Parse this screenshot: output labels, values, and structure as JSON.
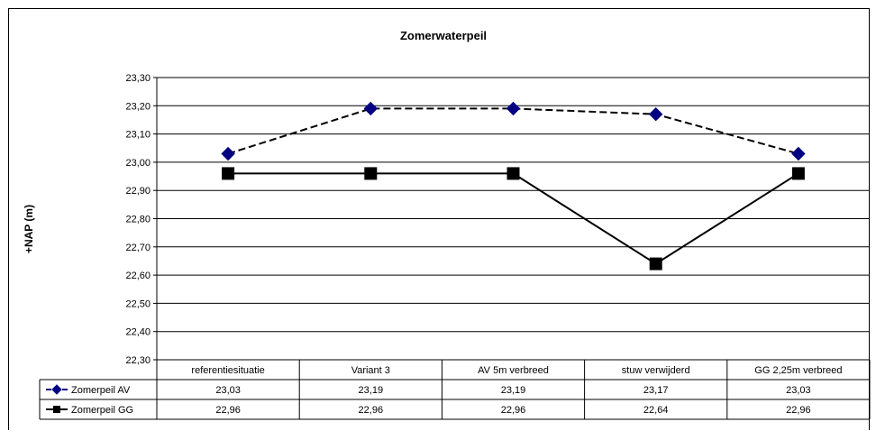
{
  "chart_data": {
    "type": "line",
    "title": "Zomerwaterpeil",
    "ylabel": "+NAP (m)",
    "xlabel": "",
    "categories": [
      "referentiesituatie",
      "Variant 3",
      "AV 5m verbreed",
      "stuw verwijderd",
      "GG 2,25m verbreed"
    ],
    "ylim": [
      22.3,
      23.3
    ],
    "ytick_step": 0.1,
    "yticks": [
      "22,30",
      "22,40",
      "22,50",
      "22,60",
      "22,70",
      "22,80",
      "22,90",
      "23,00",
      "23,10",
      "23,20",
      "23,30"
    ],
    "grid": true,
    "legend": "data-table",
    "series": [
      {
        "name": "Zomerpeil AV",
        "values": [
          23.03,
          23.19,
          23.19,
          23.17,
          23.03
        ],
        "labels": [
          "23,03",
          "23,19",
          "23,19",
          "23,17",
          "23,03"
        ],
        "color": "#000080",
        "marker": "diamond",
        "line": "dashed"
      },
      {
        "name": "Zomerpeil GG",
        "values": [
          22.96,
          22.96,
          22.96,
          22.64,
          22.96
        ],
        "labels": [
          "22,96",
          "22,96",
          "22,96",
          "22,64",
          "22,96"
        ],
        "color": "#000000",
        "marker": "square",
        "line": "solid"
      }
    ]
  }
}
